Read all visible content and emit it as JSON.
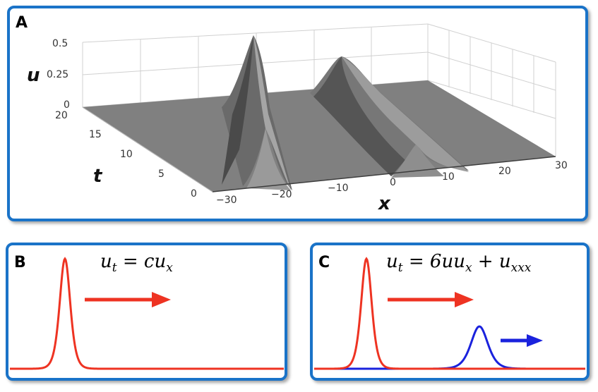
{
  "panel_a": {
    "label": "A",
    "z_axis_label": "u",
    "t_axis_label": "t",
    "x_axis_label": "x",
    "z_ticks": [
      "0.5",
      "0.25",
      "0"
    ],
    "t_ticks": [
      "20",
      "15",
      "10",
      "5",
      "0"
    ],
    "x_ticks": [
      "−30",
      "−20",
      "−10",
      "0",
      "10",
      "20",
      "30"
    ]
  },
  "panel_b": {
    "label": "B",
    "equation": "u_t = cu_x",
    "eq_base": "u",
    "eq_sub1": "t",
    "eq_mid": " = cu",
    "eq_sub2": "x",
    "pulse_color": "#ee3322",
    "arrow_color": "#ee3322"
  },
  "panel_c": {
    "label": "C",
    "equation": "u_t = 6uu_x + u_xxx",
    "eq_base": "u",
    "eq_sub1": "t",
    "eq_mid": " = 6uu",
    "eq_sub2": "x",
    "eq_plus": " + u",
    "eq_sub3": "xxx",
    "pulse_large_color": "#ee3322",
    "pulse_small_color": "#1a22dd",
    "arrow_large_color": "#ee3322",
    "arrow_small_color": "#1a22dd"
  }
}
